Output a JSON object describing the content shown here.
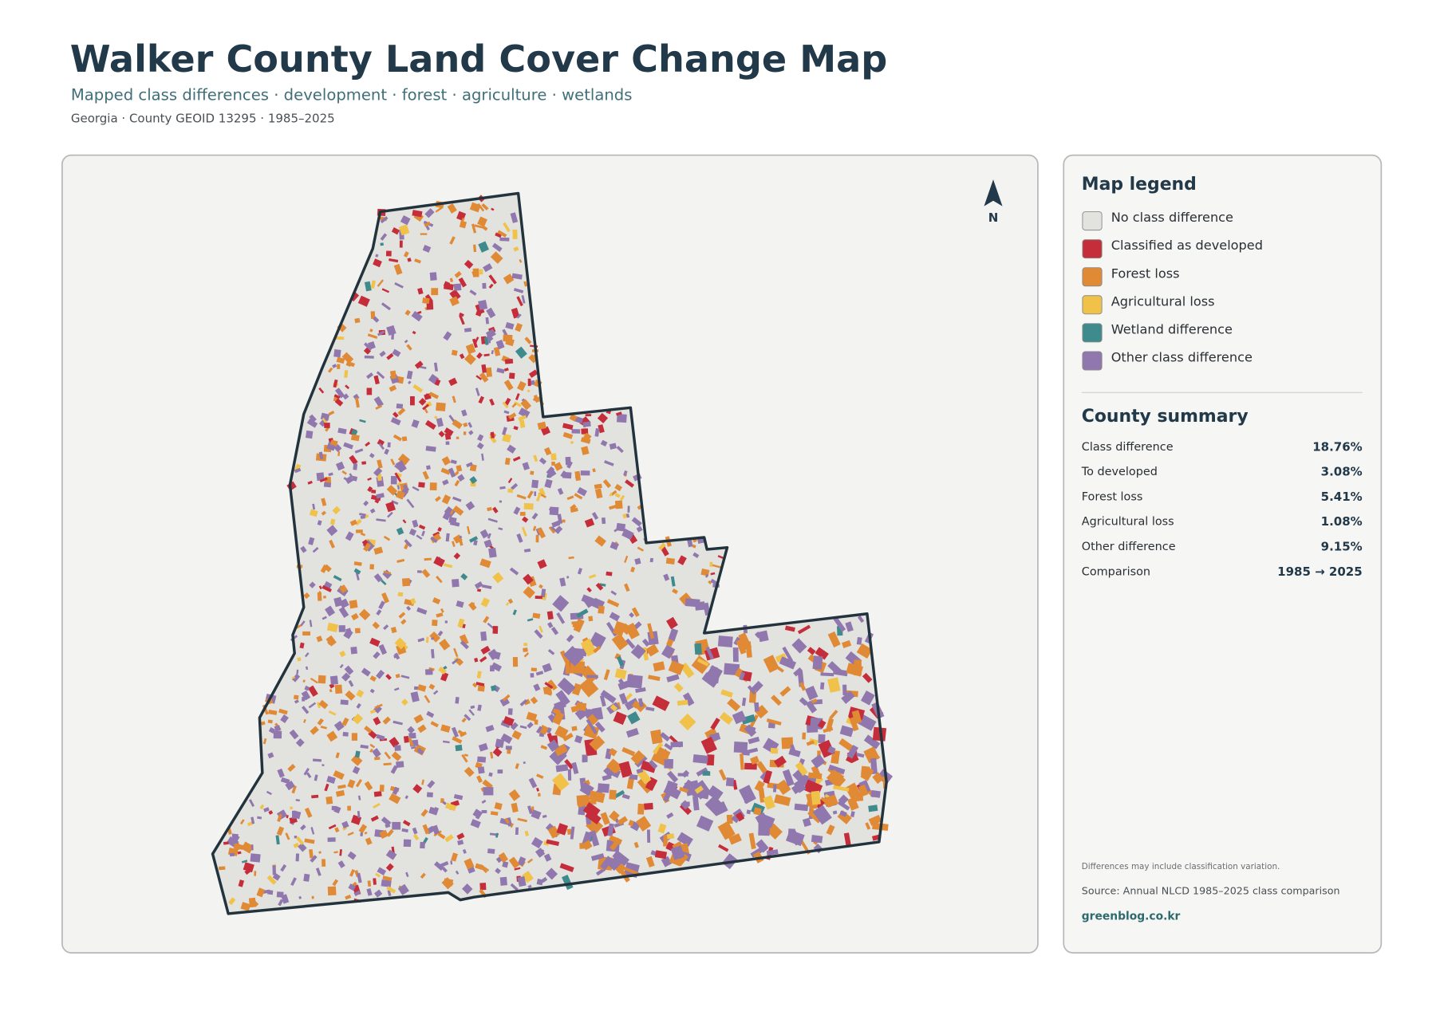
{
  "header": {
    "title": "Walker County Land Cover Change Map",
    "subtitle": "Mapped class differences · development · forest · agriculture · wetlands",
    "meta": "Georgia · County GEOID 13295 · 1985–2025"
  },
  "map": {
    "north": "N"
  },
  "legend": {
    "title": "Map legend",
    "items": [
      {
        "label": "No class difference",
        "color": "#e2e2df"
      },
      {
        "label": "Classified as developed",
        "color": "#c62d3a"
      },
      {
        "label": "Forest loss",
        "color": "#e08a35"
      },
      {
        "label": "Agricultural loss",
        "color": "#f0c24a"
      },
      {
        "label": "Wetland difference",
        "color": "#3f8a8c"
      },
      {
        "label": "Other class difference",
        "color": "#9077ad"
      }
    ]
  },
  "summary": {
    "title": "County summary",
    "rows": [
      {
        "label": "Class difference",
        "value": "18.76%"
      },
      {
        "label": "To developed",
        "value": "3.08%"
      },
      {
        "label": "Forest loss",
        "value": "5.41%"
      },
      {
        "label": "Agricultural loss",
        "value": "1.08%"
      },
      {
        "label": "Other difference",
        "value": "9.15%"
      },
      {
        "label": "Comparison",
        "value": "1985 → 2025"
      }
    ]
  },
  "footer": {
    "note": "Differences may include classification variation.",
    "source": "Source: Annual NLCD 1985–2025 class comparison",
    "site": "greenblog.co.kr"
  }
}
